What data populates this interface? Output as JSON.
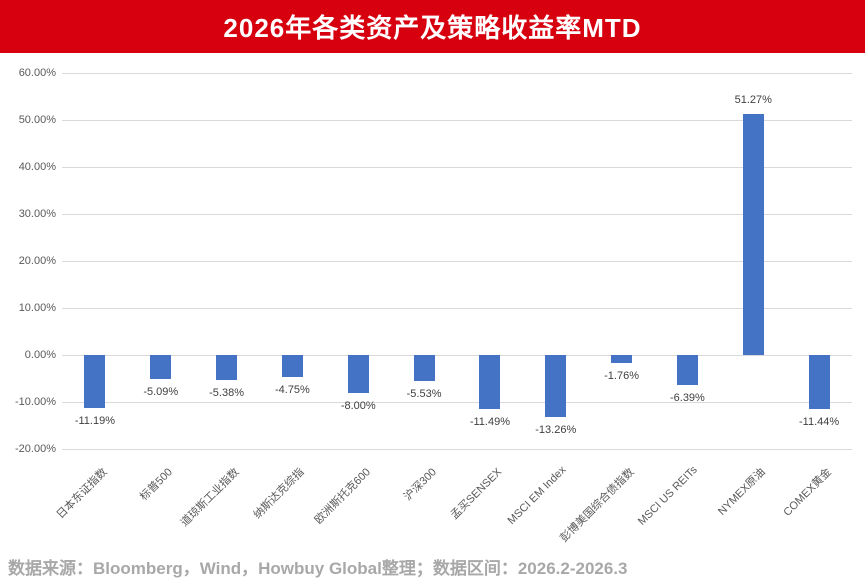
{
  "banner": {
    "title": "2026年各类资产及策略收益率MTD",
    "bg_color": "#d7000f",
    "text_color": "#ffffff"
  },
  "chart_data": {
    "type": "bar",
    "title": "2026年各类资产及策略收益率MTD",
    "categories": [
      "日本东证指数",
      "标普500",
      "道琼斯工业指数",
      "纳斯达克综指",
      "欧洲斯托克600",
      "沪深300",
      "孟买SENSEX",
      "MSCI EM Index",
      "彭博美国综合债指数",
      "MSCI US REITs",
      "NYMEX原油",
      "COMEX黄金"
    ],
    "values": [
      -11.19,
      -5.09,
      -5.38,
      -4.75,
      -8.0,
      -5.53,
      -11.49,
      -13.26,
      -1.76,
      -6.39,
      51.27,
      -11.44
    ],
    "data_labels": [
      "-11.19%",
      "-5.09%",
      "-5.38%",
      "-4.75%",
      "-8.00%",
      "-5.53%",
      "-11.49%",
      "-13.26%",
      "-1.76%",
      "-6.39%",
      "51.27%",
      "-11.44%"
    ],
    "y_ticks": [
      "60.00%",
      "50.00%",
      "40.00%",
      "30.00%",
      "20.00%",
      "10.00%",
      "0.00%",
      "-10.00%",
      "-20.00%"
    ],
    "y_tick_values": [
      60,
      50,
      40,
      30,
      20,
      10,
      0,
      -10,
      -20
    ],
    "ylim": [
      -20,
      60
    ],
    "xlabel": "",
    "ylabel": "",
    "grid": true,
    "legend_position": "none",
    "bar_color": "#4472c4",
    "gridline_color": "#d9d9d9"
  },
  "footer": {
    "text": "数据来源：Bloomberg，Wind，Howbuy Global整理；数据区间：2026.2-2026.3"
  }
}
